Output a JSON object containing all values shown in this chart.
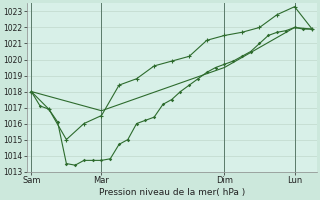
{
  "xlabel": "Pression niveau de la mer( hPa )",
  "bg_color": "#cce8dc",
  "plot_bg_color": "#d8f0e8",
  "grid_color": "#c0d8cc",
  "line_color": "#2d6b2d",
  "vline_color": "#5a7a6a",
  "ylim": [
    1013,
    1023.5
  ],
  "yticks": [
    1013,
    1014,
    1015,
    1016,
    1017,
    1018,
    1019,
    1020,
    1021,
    1022,
    1023
  ],
  "day_labels": [
    "Sam",
    "Mar",
    "Dim",
    "Lun"
  ],
  "day_positions": [
    0,
    8,
    22,
    30
  ],
  "vline_positions": [
    0,
    8,
    22,
    30
  ],
  "line1_x": [
    0,
    1,
    2,
    3,
    4,
    5,
    6,
    7,
    8,
    9,
    10,
    11,
    12,
    13,
    14,
    15,
    16,
    17,
    18,
    19,
    20,
    21,
    22,
    23,
    24,
    25,
    26,
    27,
    28,
    29,
    30,
    31,
    32
  ],
  "line1_y": [
    1018.0,
    1017.1,
    1016.9,
    1016.1,
    1013.5,
    1013.4,
    1013.7,
    1013.7,
    1013.7,
    1013.8,
    1014.7,
    1015.0,
    1016.0,
    1016.2,
    1016.4,
    1017.2,
    1017.5,
    1018.0,
    1018.4,
    1018.8,
    1019.2,
    1019.5,
    1019.7,
    1019.9,
    1020.2,
    1020.5,
    1021.0,
    1021.5,
    1021.7,
    1021.8,
    1022.0,
    1021.9,
    1021.9
  ],
  "line2_x": [
    0,
    2,
    4,
    6,
    8,
    10,
    12,
    14,
    16,
    18,
    20,
    22,
    24,
    26,
    28,
    30,
    32
  ],
  "line2_y": [
    1018.0,
    1016.9,
    1015.0,
    1016.0,
    1016.5,
    1018.4,
    1018.8,
    1019.6,
    1019.9,
    1020.2,
    1021.2,
    1021.5,
    1021.7,
    1022.0,
    1022.8,
    1023.3,
    1021.9
  ],
  "line3_x": [
    0,
    8,
    22,
    30,
    32
  ],
  "line3_y": [
    1018.0,
    1016.8,
    1019.5,
    1022.0,
    1021.9
  ],
  "xlim": [
    -0.5,
    32.5
  ]
}
